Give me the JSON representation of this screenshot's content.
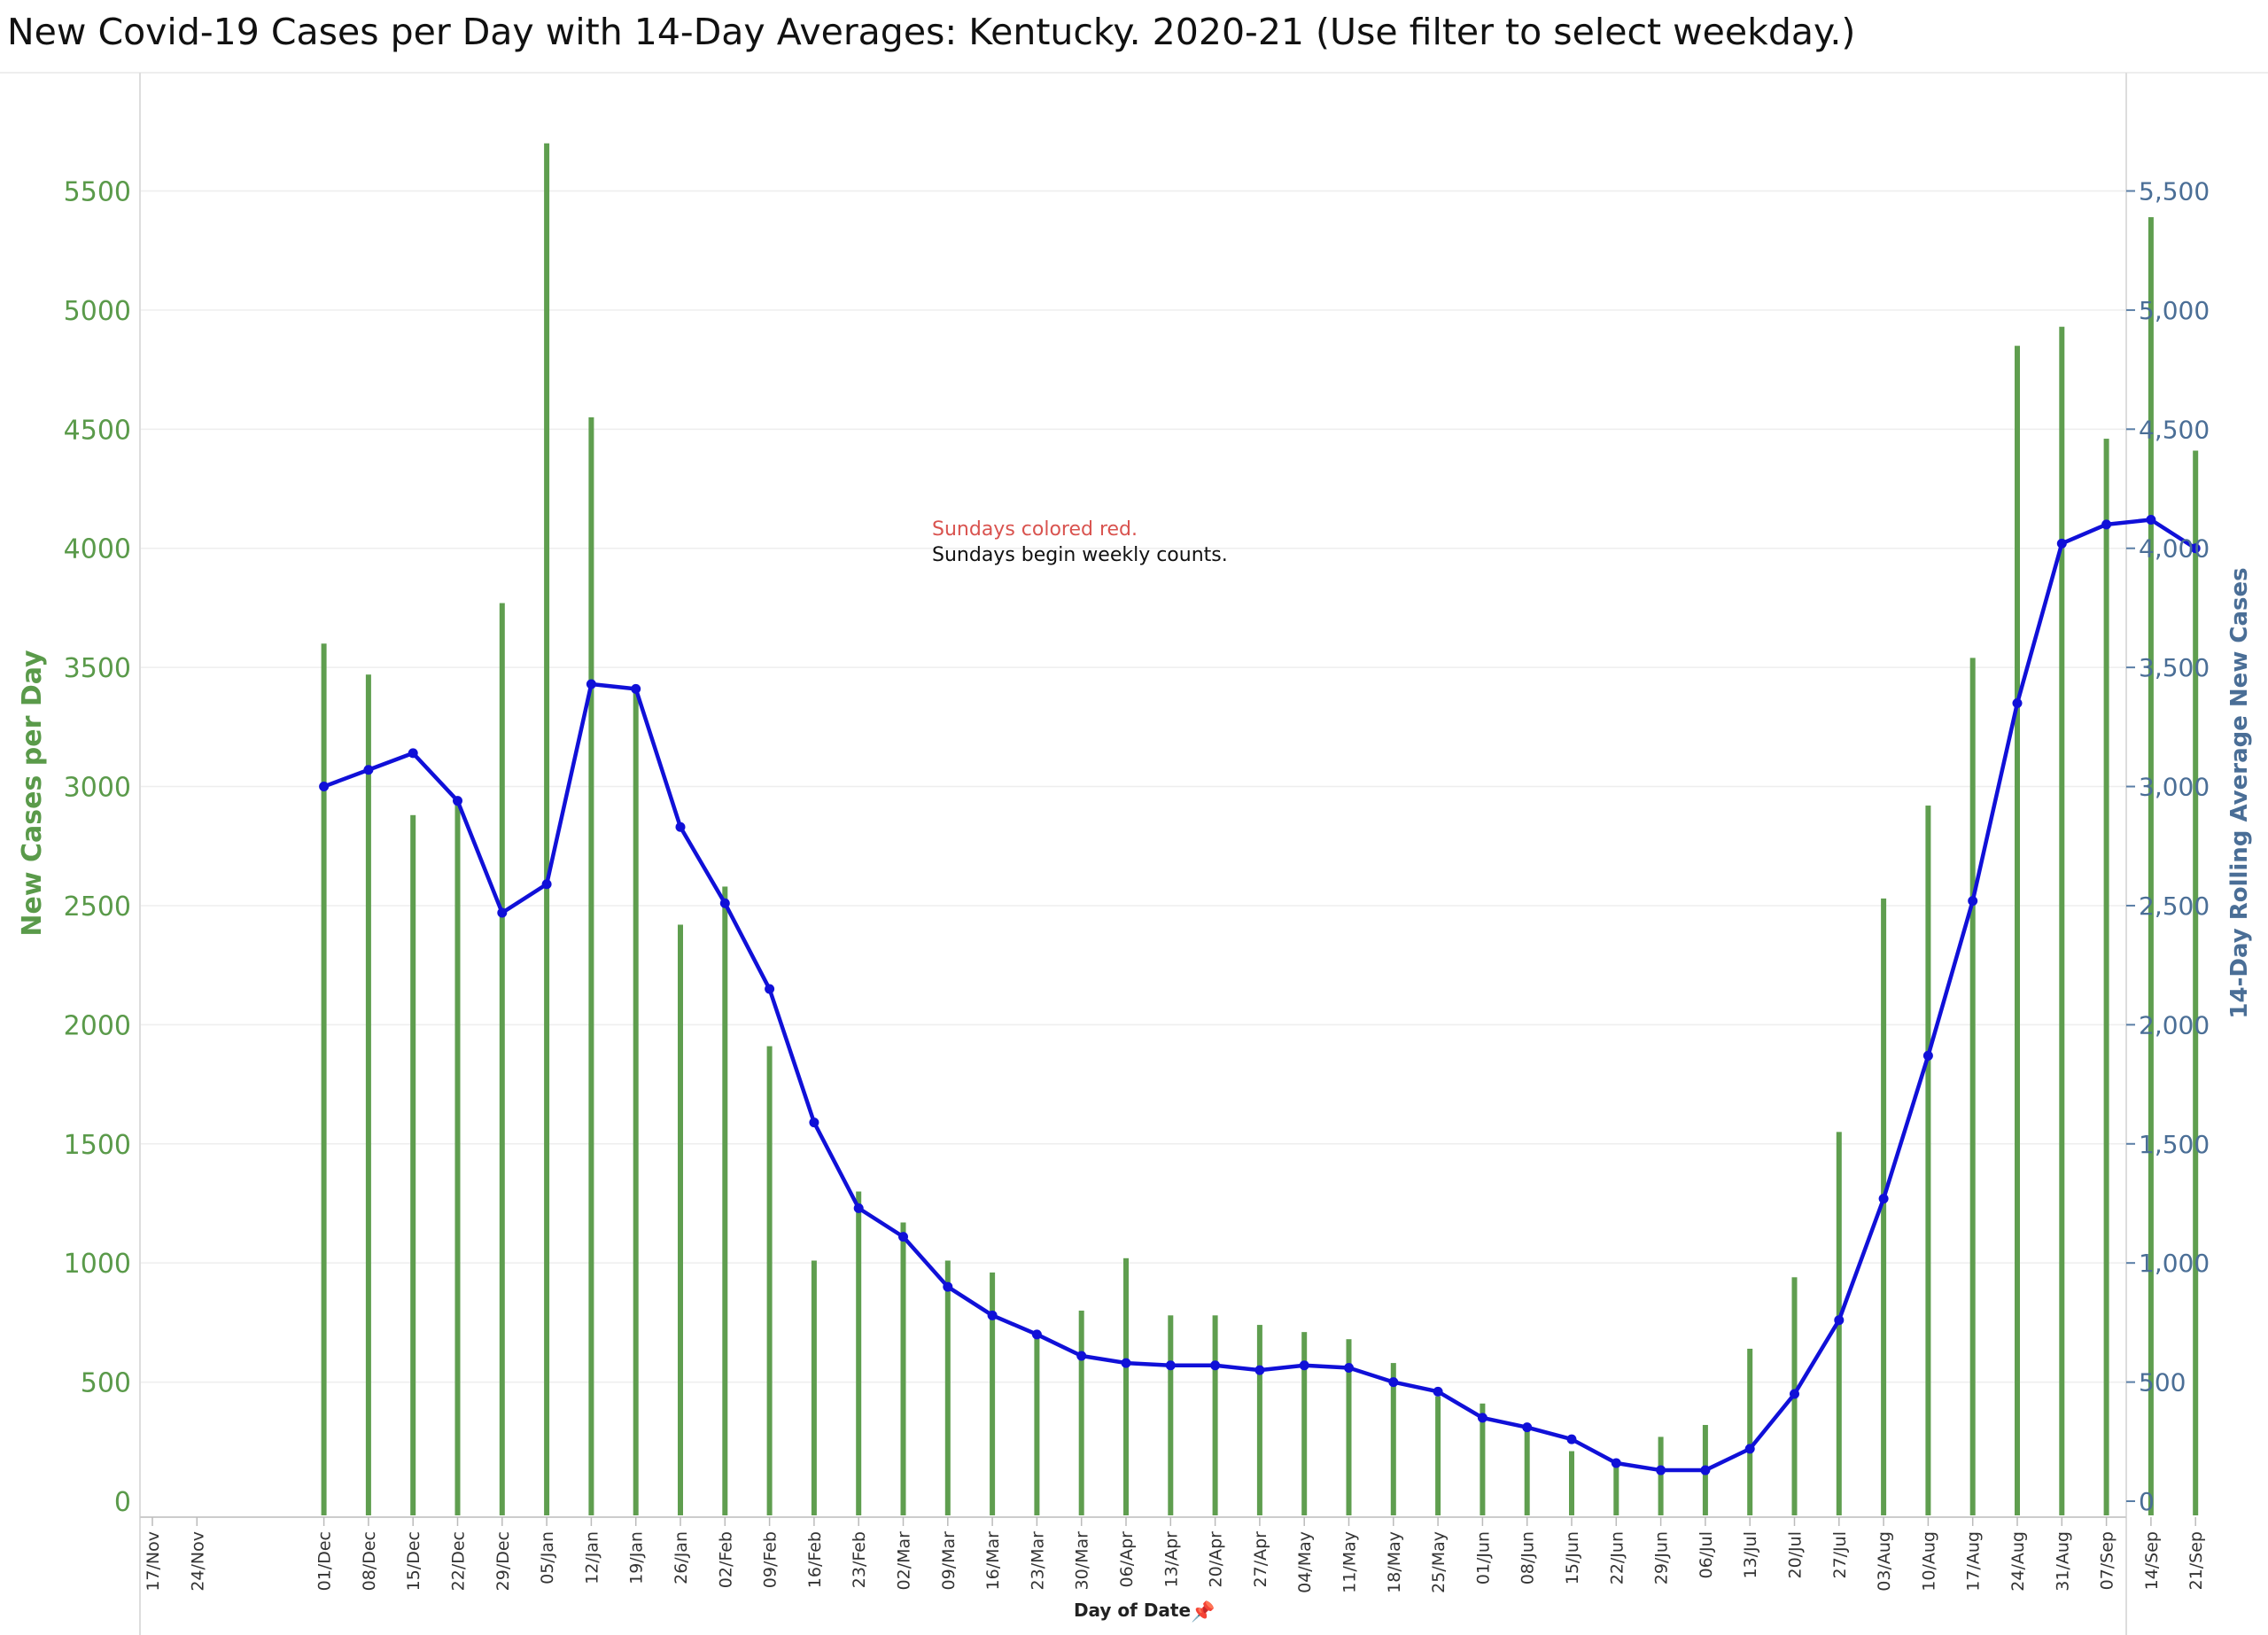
{
  "chart_data": {
    "type": "bar",
    "title": "New Covid-19 Cases per Day with 14-Day Averages: Kentucky. 2020-21 (Use filter to select weekday.)",
    "xlabel": "Day of Date",
    "ylabel": "New Cases per Day",
    "y2label": "14-Day Rolling Average New Cases",
    "ylim": [
      0,
      5900
    ],
    "y_ticks": [
      "0",
      "500",
      "1000",
      "1500",
      "2000",
      "2500",
      "3000",
      "3500",
      "4000",
      "4500",
      "5000",
      "5500"
    ],
    "y2_ticks": [
      "0",
      "500",
      "1,000",
      "1,500",
      "2,000",
      "2,500",
      "3,000",
      "3,500",
      "4,000",
      "4,500",
      "5,000",
      "5,500"
    ],
    "categories": [
      "17/Nov",
      "24/Nov",
      "01/Dec",
      "08/Dec",
      "15/Dec",
      "22/Dec",
      "29/Dec",
      "05/Jan",
      "12/Jan",
      "19/Jan",
      "26/Jan",
      "02/Feb",
      "09/Feb",
      "16/Feb",
      "23/Feb",
      "02/Mar",
      "09/Mar",
      "16/Mar",
      "23/Mar",
      "30/Mar",
      "06/Apr",
      "13/Apr",
      "20/Apr",
      "27/Apr",
      "04/May",
      "11/May",
      "18/May",
      "25/May",
      "01/Jun",
      "08/Jun",
      "15/Jun",
      "22/Jun",
      "29/Jun",
      "06/Jul",
      "13/Jul",
      "20/Jul",
      "27/Jul",
      "03/Aug",
      "10/Aug",
      "17/Aug",
      "24/Aug",
      "31/Aug",
      "07/Sep",
      "14/Sep",
      "21/Sep"
    ],
    "series": [
      {
        "name": "New Cases per Day",
        "type": "bar",
        "color": "#5f9e4f",
        "values": [
          null,
          null,
          3600,
          3470,
          2880,
          2950,
          3770,
          5700,
          4550,
          3400,
          2420,
          2580,
          1910,
          1010,
          1300,
          1170,
          1010,
          960,
          700,
          800,
          1020,
          780,
          780,
          740,
          710,
          680,
          580,
          440,
          410,
          300,
          210,
          160,
          270,
          320,
          640,
          940,
          1550,
          2530,
          2920,
          3540,
          4850,
          4930,
          4460,
          5390,
          4410
        ]
      },
      {
        "name": "14-Day Rolling Average New Cases",
        "type": "line",
        "color": "#1010d8",
        "values": [
          null,
          null,
          3000,
          3070,
          3140,
          2940,
          2470,
          2590,
          3430,
          3410,
          2830,
          2510,
          2150,
          1590,
          1230,
          1110,
          900,
          780,
          700,
          610,
          580,
          570,
          570,
          550,
          570,
          560,
          500,
          460,
          350,
          310,
          260,
          160,
          130,
          130,
          220,
          450,
          760,
          1270,
          1870,
          2520,
          3350,
          4020,
          4100,
          4120,
          4000
        ]
      }
    ],
    "annotations": [
      "Sundays colored red.",
      "Sundays begin weekly counts."
    ]
  }
}
